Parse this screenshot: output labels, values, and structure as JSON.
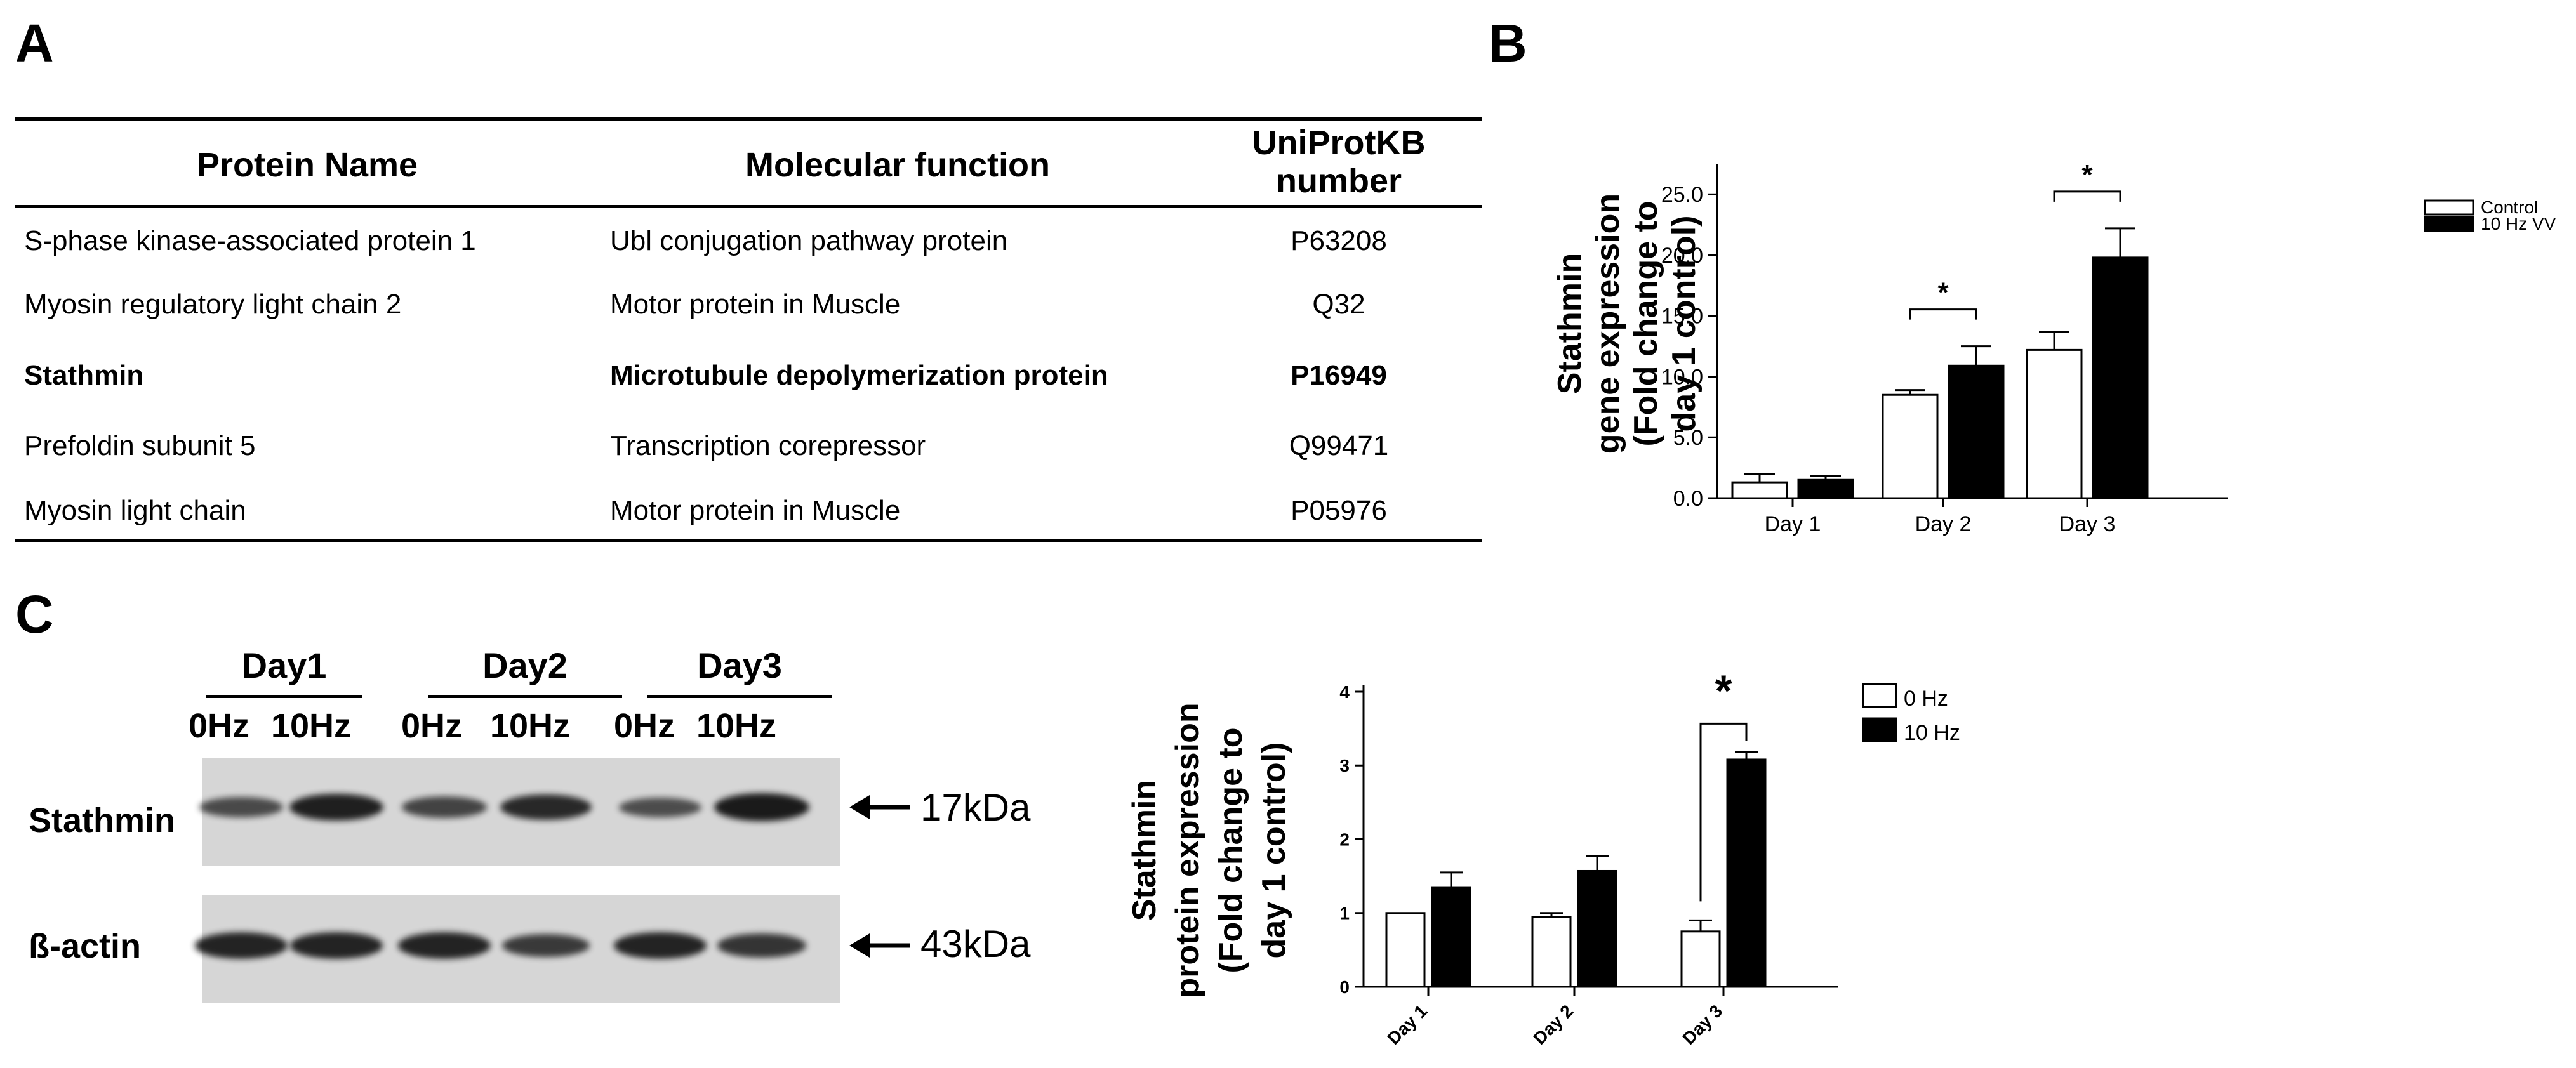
{
  "panels": {
    "a": "A",
    "b": "B",
    "c": "C"
  },
  "table": {
    "headers": [
      "Protein Name",
      "Molecular function",
      "UniProtKB number"
    ],
    "header_lines": {
      "uniprot_1": "UniProtKB",
      "uniprot_2": "number"
    },
    "rows": [
      {
        "name": "S-phase kinase-associated protein 1",
        "function": "Ubl conjugation pathway protein",
        "id": "P63208",
        "bold": false
      },
      {
        "name": "Myosin regulatory light chain 2",
        "function": "Motor protein in Muscle",
        "id": "Q32",
        "bold": false
      },
      {
        "name": "Stathmin",
        "function": "Microtubule depolymerization protein",
        "id": "P16949",
        "bold": true
      },
      {
        "name": "Prefoldin subunit 5",
        "function": "Transcription corepressor",
        "id": "Q99471",
        "bold": false
      },
      {
        "name": "Myosin light chain",
        "function": "Motor protein in Muscle",
        "id": "P05976",
        "bold": false
      }
    ]
  },
  "blot": {
    "days": [
      "Day1",
      "Day2",
      "Day3"
    ],
    "lanes": [
      "0Hz",
      "10Hz",
      "0Hz",
      "10Hz",
      "0Hz",
      "10Hz"
    ],
    "rows": [
      {
        "label": "Stathmin",
        "size": "17kDa",
        "intensity": [
          0.55,
          0.95,
          0.6,
          0.85,
          0.5,
          1.0
        ]
      },
      {
        "label": "ß-actin",
        "size": "43kDa",
        "intensity": [
          0.9,
          0.9,
          0.9,
          0.7,
          0.9,
          0.75
        ]
      }
    ]
  },
  "chart_data": [
    {
      "id": "B",
      "type": "bar",
      "categories": [
        "Day 1",
        "Day 2",
        "Day 3"
      ],
      "series": [
        {
          "name": "Control",
          "values": [
            1.3,
            8.5,
            12.2
          ],
          "errors": [
            0.7,
            0.4,
            1.5
          ],
          "color": "#ffffff"
        },
        {
          "name": "10 Hz VV",
          "values": [
            1.5,
            10.9,
            19.8
          ],
          "errors": [
            0.3,
            1.6,
            2.4
          ],
          "color": "#000000"
        }
      ],
      "ylabel_lines": [
        "Stathmin",
        "gene expression",
        "(Fold change to",
        "day 1 control)"
      ],
      "ylim": [
        0,
        27
      ],
      "yticks": [
        "0.0",
        "5.0",
        "10.0",
        "15.0",
        "20.0",
        "25.0"
      ],
      "significance": [
        {
          "category": "Day 2",
          "label": "*"
        },
        {
          "category": "Day 3",
          "label": "*"
        }
      ],
      "legend": "top-right",
      "grid": false
    },
    {
      "id": "C",
      "type": "bar",
      "categories": [
        "Day 1",
        "Day 2",
        "Day 3"
      ],
      "series": [
        {
          "name": "0 Hz",
          "values": [
            1.0,
            0.95,
            0.75
          ],
          "errors": [
            0.0,
            0.05,
            0.15
          ],
          "color": "#ffffff"
        },
        {
          "name": "10 Hz",
          "values": [
            1.35,
            1.57,
            3.08
          ],
          "errors": [
            0.2,
            0.2,
            0.1
          ],
          "color": "#000000"
        }
      ],
      "ylabel_lines": [
        "Stathmin",
        "protein expression",
        "(Fold change to",
        "day 1 control)"
      ],
      "ylim": [
        0,
        4
      ],
      "yticks": [
        "0",
        "1",
        "2",
        "3",
        "4"
      ],
      "significance": [
        {
          "category": "Day 3",
          "label": "*"
        }
      ],
      "legend": "top-right",
      "grid": false
    }
  ]
}
